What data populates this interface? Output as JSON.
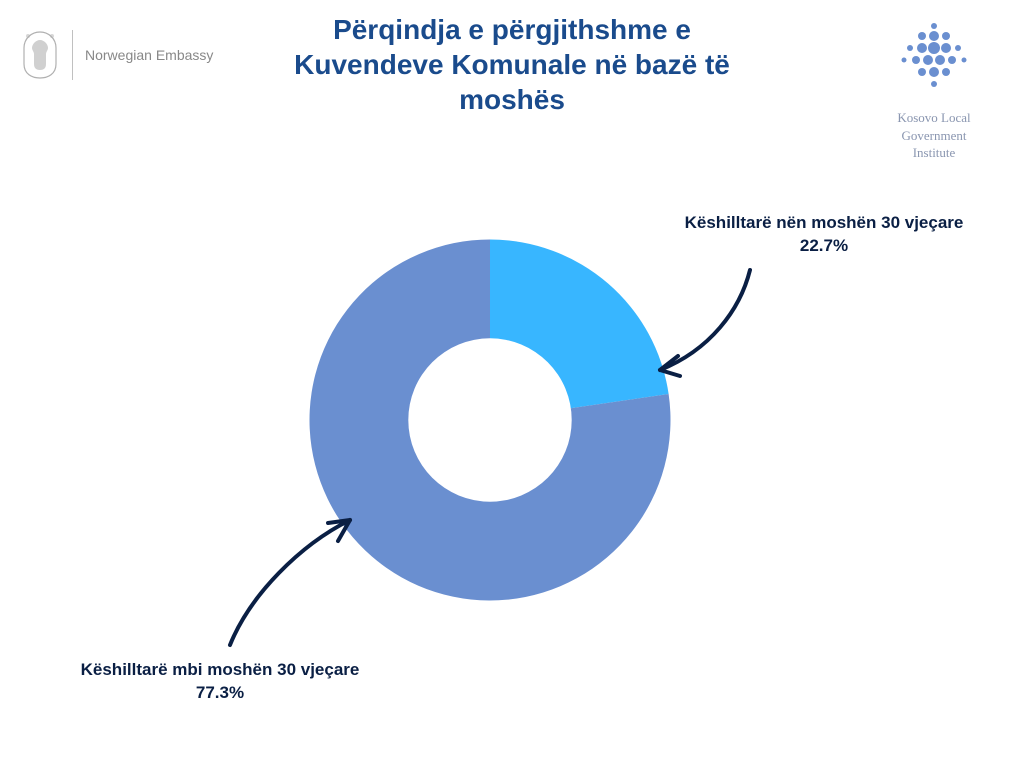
{
  "title": "Përqindja e përgjithshme e Kuvendeve Komunale në bazë të moshës",
  "logo_left_text": "Norwegian Embassy",
  "logo_right_line1": "Kosovo Local",
  "logo_right_line2": "Government",
  "logo_right_line3": "Institute",
  "chart": {
    "type": "donut",
    "background_color": "#ffffff",
    "inner_radius_ratio": 0.42,
    "slices": [
      {
        "label": "Këshilltarë nën moshën 30 vjeçare",
        "value": 22.7,
        "percent_text": "22.7%",
        "color": "#38b6ff"
      },
      {
        "label": "Këshilltarë mbi moshën 30 vjeçare",
        "value": 77.3,
        "percent_text": "77.3%",
        "color": "#6a8fd0"
      }
    ],
    "arrow_color": "#0a1f44",
    "arrow_stroke_width": 4,
    "title_color": "#1a4b8c",
    "title_fontsize": 28,
    "label_color": "#0a1f44",
    "label_fontsize": 17,
    "label_fontweight": 700
  },
  "colors": {
    "left_logo_gray": "#a0a0a0",
    "right_logo_text": "#8a96b0",
    "right_logo_dots": "#6a8fd0"
  }
}
